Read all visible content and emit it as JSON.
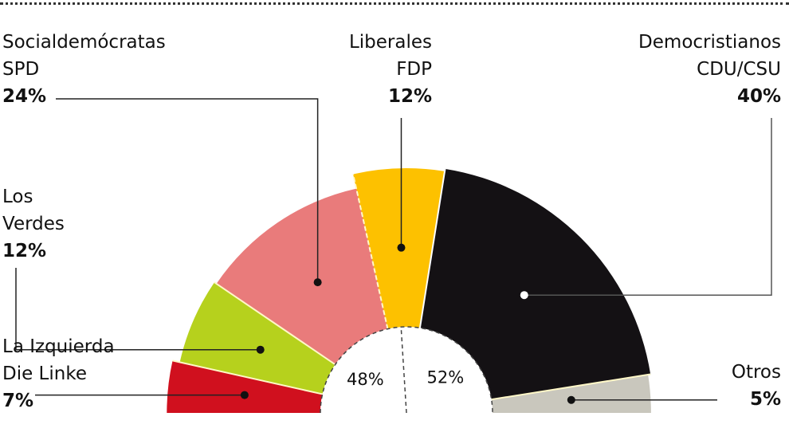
{
  "chart_data": {
    "type": "pie",
    "style": "semicircle-parliament",
    "series": [
      {
        "name_line1": "La Izquierda",
        "name_line2": "Die Linke",
        "value": 7,
        "value_label": "7%",
        "color": "#d0101e"
      },
      {
        "name_line1": "Los",
        "name_line2": "Verdes",
        "value": 12,
        "value_label": "12%",
        "color": "#b6d11d"
      },
      {
        "name_line1": "Socialdemócratas",
        "name_line2": "SPD",
        "value": 24,
        "value_label": "24%",
        "color": "#e97b7b"
      },
      {
        "name_line1": "Liberales",
        "name_line2": "FDP",
        "value": 12,
        "value_label": "12%",
        "color": "#fdc100"
      },
      {
        "name_line1": "Democristianos",
        "name_line2": "CDU/CSU",
        "value": 40,
        "value_label": "40%",
        "color": "#141114"
      },
      {
        "name_line1": "Otros",
        "name_line2": "",
        "value": 5,
        "value_label": "5%",
        "color": "#c9c7bd"
      }
    ],
    "blocs": [
      {
        "value": 48,
        "value_label": "48%"
      },
      {
        "value": 52,
        "value_label": "52%"
      }
    ]
  }
}
